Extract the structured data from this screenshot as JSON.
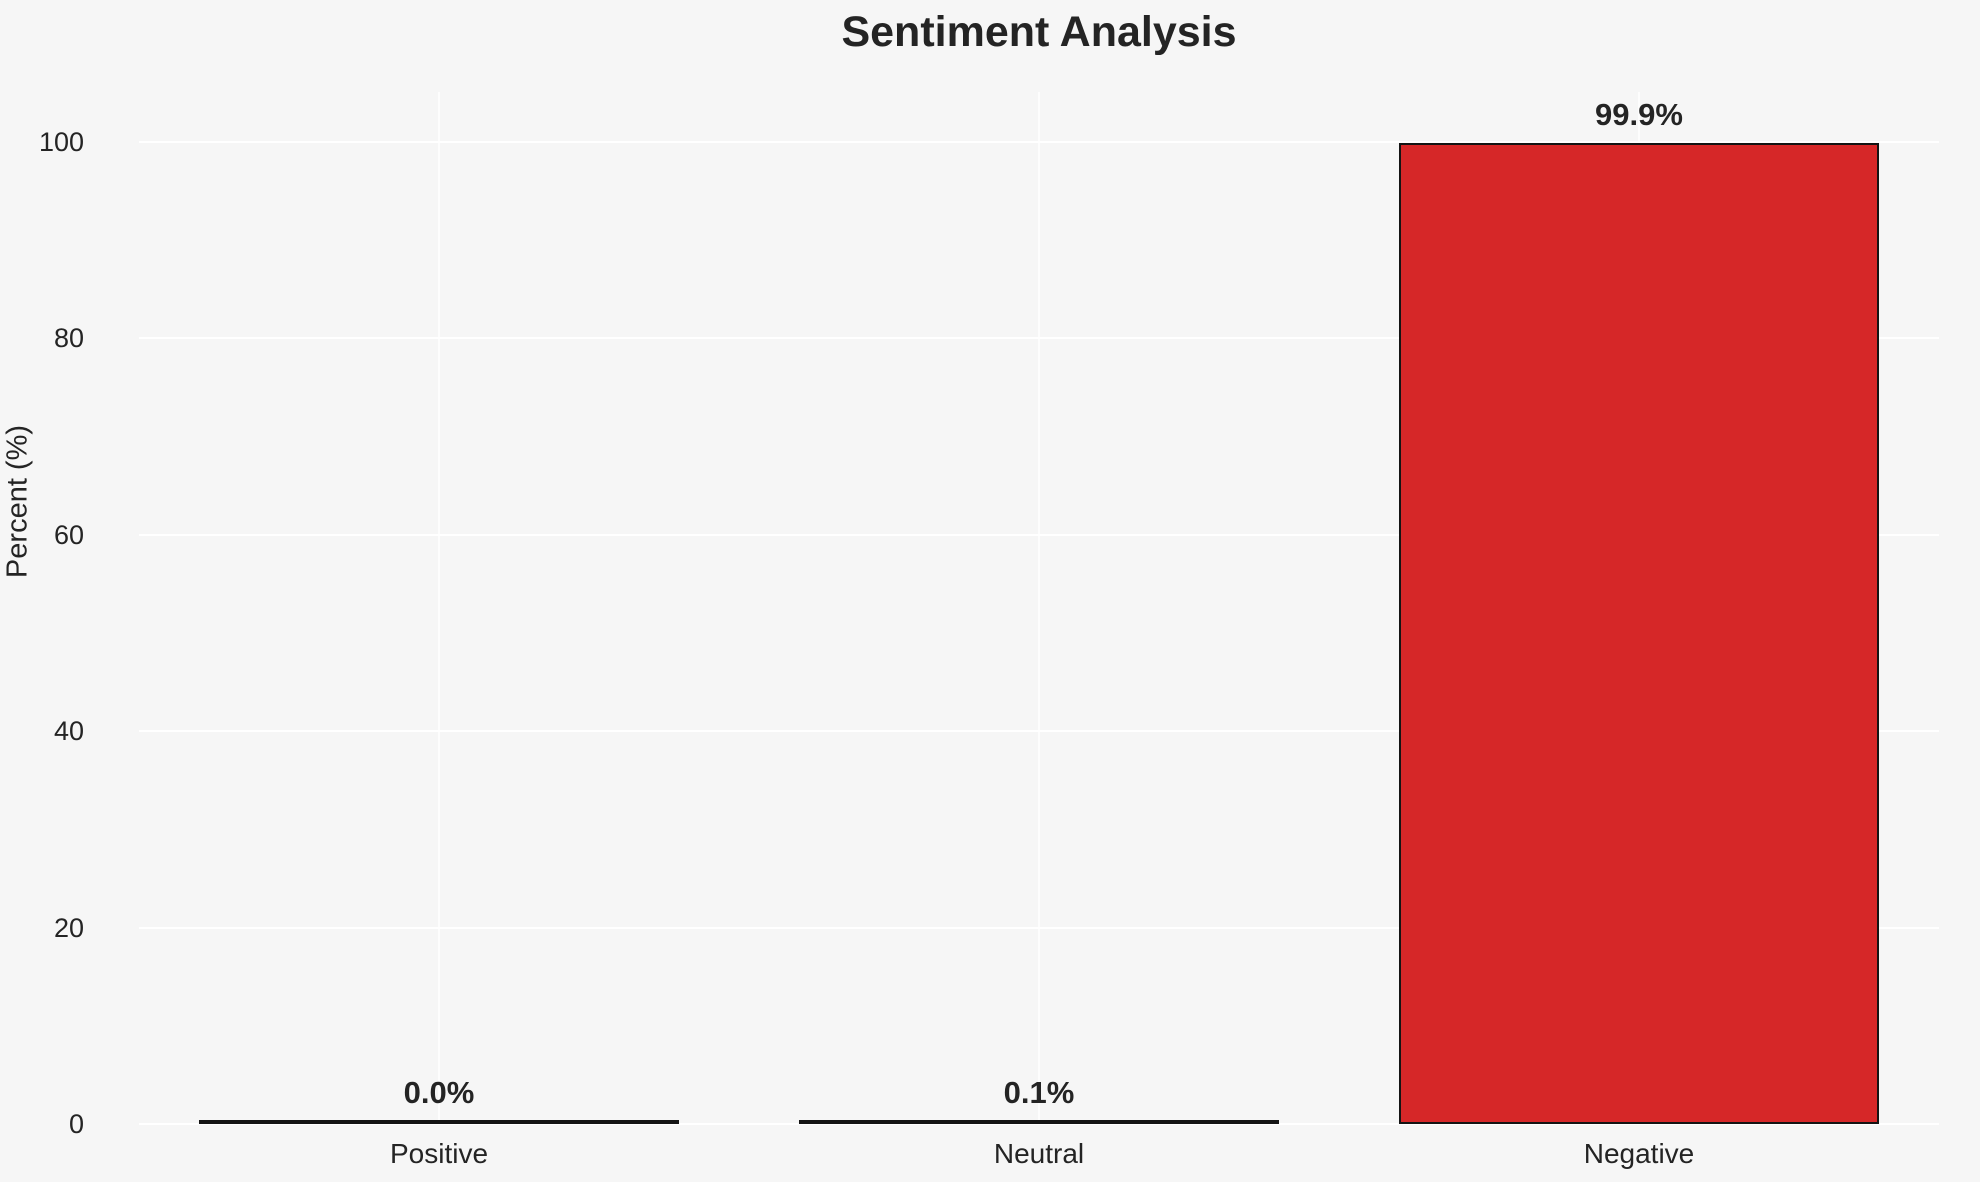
{
  "chart_data": {
    "type": "bar",
    "title": "Sentiment Analysis",
    "ylabel": "Percent (%)",
    "xlabel": "",
    "categories": [
      "Positive",
      "Neutral",
      "Negative"
    ],
    "values": [
      0.0,
      0.1,
      99.9
    ],
    "value_labels": [
      "0.0%",
      "0.1%",
      "99.9%"
    ],
    "yticks": [
      0,
      20,
      40,
      60,
      80,
      100
    ],
    "ylim": [
      0,
      105
    ],
    "grid": true,
    "legend": "none",
    "colors": {
      "bar_fill": "#d62728",
      "bar_edge": "#141414",
      "background": "#f6f6f6",
      "gridline": "#ffffff",
      "text": "#242424"
    }
  }
}
